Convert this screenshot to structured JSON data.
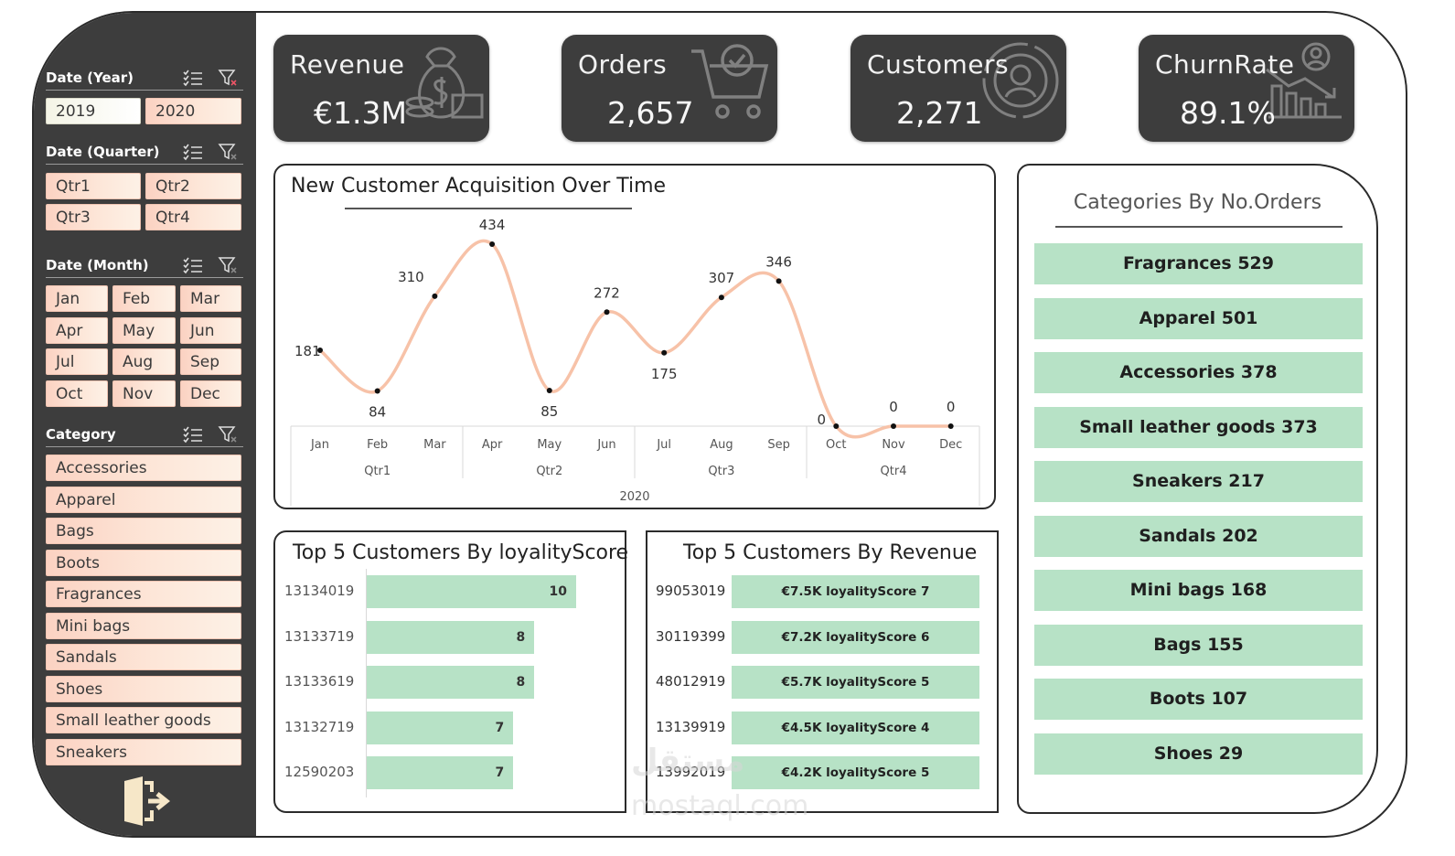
{
  "sidebar": {
    "year": {
      "title": "Date (Year)",
      "items": [
        "2019",
        "2020"
      ]
    },
    "quarter": {
      "title": "Date (Quarter)",
      "items": [
        "Qtr1",
        "Qtr2",
        "Qtr3",
        "Qtr4"
      ]
    },
    "month": {
      "title": "Date (Month)",
      "items": [
        "Jan",
        "Feb",
        "Mar",
        "Apr",
        "May",
        "Jun",
        "Jul",
        "Aug",
        "Sep",
        "Oct",
        "Nov",
        "Dec"
      ]
    },
    "category": {
      "title": "Category",
      "items": [
        "Accessories",
        "Apparel",
        "Bags",
        "Boots",
        "Fragrances",
        "Mini bags",
        "Sandals",
        "Shoes",
        "Small leather goods",
        "Sneakers"
      ]
    }
  },
  "kpis": [
    {
      "title": "Revenue",
      "value": "€1.3M",
      "icon": "money-bag-icon"
    },
    {
      "title": "Orders",
      "value": "2,657",
      "icon": "shopping-cart-icon"
    },
    {
      "title": "Customers",
      "value": "2,271",
      "icon": "customer-icon"
    },
    {
      "title": "ChurnRate",
      "value": "89.1%",
      "icon": "declining-chart-icon"
    }
  ],
  "acquisition_chart": {
    "title": "New Customer Acquisition Over Time",
    "year_label": "2020",
    "quarters": [
      "Qtr1",
      "Qtr2",
      "Qtr3",
      "Qtr4"
    ]
  },
  "chart_data": [
    {
      "type": "line",
      "title": "New Customer Acquisition Over Time",
      "categories": [
        "Jan",
        "Feb",
        "Mar",
        "Apr",
        "May",
        "Jun",
        "Jul",
        "Aug",
        "Sep",
        "Oct",
        "Nov",
        "Dec"
      ],
      "values": [
        181,
        84,
        310,
        434,
        85,
        272,
        175,
        307,
        346,
        0,
        0,
        0
      ],
      "color": "#f7c2a8",
      "grid": false
    },
    {
      "type": "bar",
      "title": "Top 5 Customers By loyalityScore",
      "categories": [
        "13134019",
        "13133719",
        "13133619",
        "13132719",
        "12590203"
      ],
      "values": [
        10,
        8,
        8,
        7,
        7
      ]
    },
    {
      "type": "bar",
      "title": "Top 5 Customers By Revenue",
      "categories": [
        "99053019",
        "30119399",
        "48012919",
        "13139919",
        "13992019"
      ],
      "labels": [
        "€7.5K loyalityScore 7",
        "€7.2K loyalityScore 6",
        "€5.7K loyalityScore 5",
        "€4.5K loyalityScore 4",
        "€4.2K loyalityScore 5"
      ]
    },
    {
      "type": "table",
      "title": "Categories By No.Orders",
      "rows": [
        "Fragrances 529",
        "Apparel 501",
        "Accessories 378",
        "Small leather goods 373",
        "Sneakers 217",
        "Sandals 202",
        "Mini bags 168",
        "Bags 155",
        "Boots 107",
        "Shoes 29"
      ]
    }
  ],
  "loyalty": {
    "title": "Top 5 Customers By loyalityScore"
  },
  "revenue_top": {
    "title": "Top 5 Customers By Revenue"
  },
  "categories_panel": {
    "title": "Categories By No.Orders"
  },
  "watermark": {
    "text": "مستقل",
    "sub": "mostaql.com"
  },
  "colors": {
    "sidebar": "#3d3d3d",
    "accent_green": "#b7e2c6",
    "line": "#f7c2a8",
    "slicer": "#fbd2c2"
  }
}
